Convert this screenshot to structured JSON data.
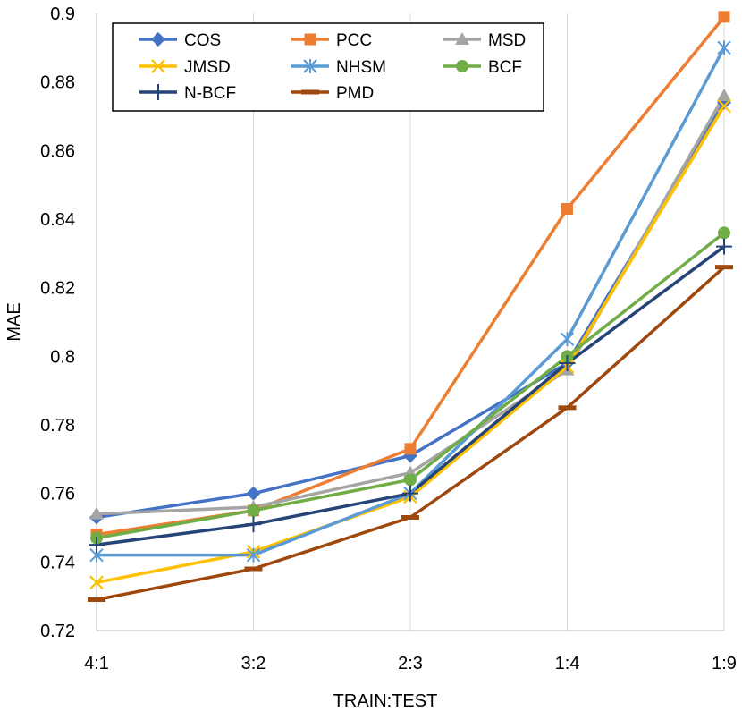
{
  "chart_data": {
    "type": "line",
    "title": "",
    "xlabel": "TRAIN:TEST",
    "ylabel": "MAE",
    "categories": [
      "4:1",
      "3:2",
      "2:3",
      "1:4",
      "1:9"
    ],
    "ylim": [
      0.72,
      0.9
    ],
    "yticks": [
      0.72,
      0.74,
      0.76,
      0.78,
      0.8,
      0.82,
      0.84,
      0.86,
      0.88,
      0.9
    ],
    "ytick_labels": [
      "0.72",
      "0.74",
      "0.76",
      "0.78",
      "0.8",
      "0.82",
      "0.84",
      "0.86",
      "0.88",
      "0.9"
    ],
    "grid": "vertical",
    "legend_position": "top-left-inside",
    "series": [
      {
        "name": "COS",
        "color": "#4472C4",
        "marker": "diamond",
        "values": [
          0.753,
          0.76,
          0.771,
          0.798,
          0.874
        ]
      },
      {
        "name": "PCC",
        "color": "#ED7D31",
        "marker": "square",
        "values": [
          0.748,
          0.755,
          0.773,
          0.843,
          0.899
        ]
      },
      {
        "name": "MSD",
        "color": "#A5A5A5",
        "marker": "triangle",
        "values": [
          0.754,
          0.756,
          0.766,
          0.796,
          0.876
        ]
      },
      {
        "name": "JMSD",
        "color": "#FFC000",
        "marker": "x",
        "values": [
          0.734,
          0.743,
          0.759,
          0.797,
          0.873
        ]
      },
      {
        "name": "NHSM",
        "color": "#5B9BD5",
        "marker": "asterisk",
        "values": [
          0.742,
          0.742,
          0.76,
          0.805,
          0.89
        ]
      },
      {
        "name": "BCF",
        "color": "#70AD47",
        "marker": "circle",
        "values": [
          0.747,
          0.755,
          0.764,
          0.8,
          0.836
        ]
      },
      {
        "name": "N-BCF",
        "color": "#264478",
        "marker": "plus",
        "values": [
          0.745,
          0.751,
          0.76,
          0.798,
          0.832
        ]
      },
      {
        "name": "PMD",
        "color": "#9E480E",
        "marker": "dash",
        "values": [
          0.729,
          0.738,
          0.753,
          0.785,
          0.826
        ]
      }
    ]
  }
}
